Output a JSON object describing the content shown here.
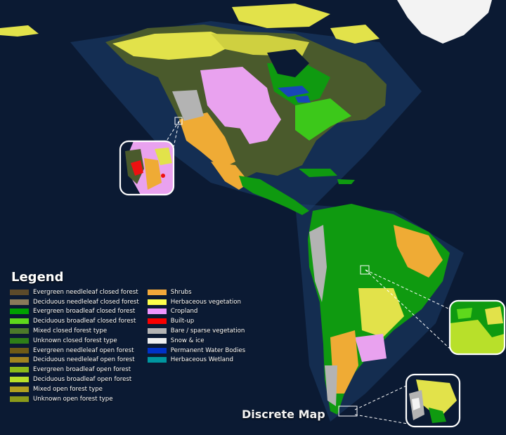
{
  "legend": {
    "title": "Legend",
    "left_items": [
      {
        "label": "Evergreen needleleaf closed forest",
        "color": "#5c4a2a"
      },
      {
        "label": "Deciduous needleleaf closed forest",
        "color": "#8a7a5a"
      },
      {
        "label": "Evergreen broadleaf closed forest",
        "color": "#00a000"
      },
      {
        "label": "Deciduous broadleaf closed forest",
        "color": "#5ed81c"
      },
      {
        "label": "Mixed closed forest type",
        "color": "#4c7a2a"
      },
      {
        "label": "Unknown closed forest type",
        "color": "#2f7f18"
      },
      {
        "label": "Evergreen needleleaf open forest",
        "color": "#6e5a16"
      },
      {
        "label": "Deciduous needleleaf open forest",
        "color": "#a08420"
      },
      {
        "label": "Evergreen broadleaf open forest",
        "color": "#8cba1a"
      },
      {
        "label": "Deciduous broadleaf open forest",
        "color": "#b8e02a"
      },
      {
        "label": "Mixed open forest type",
        "color": "#b0a020"
      },
      {
        "label": "Unknown open forest type",
        "color": "#8a9a1a"
      }
    ],
    "right_items": [
      {
        "label": "Shrubs",
        "color": "#f2a83a"
      },
      {
        "label": "Herbaceous vegetation",
        "color": "#ffff4c"
      },
      {
        "label": "Cropland",
        "color": "#f096ff"
      },
      {
        "label": "Built-up",
        "color": "#fa0000"
      },
      {
        "label": "Bare / sparse vegetation",
        "color": "#b4b4b4"
      },
      {
        "label": "Snow & ice",
        "color": "#f0f0f0"
      },
      {
        "label": "Permanent Water Bodies",
        "color": "#0032c8"
      },
      {
        "label": "Herbaceous Wetland",
        "color": "#0096a0"
      }
    ]
  },
  "caption": "Discrete Map",
  "colors": {
    "ocean": "#0b1a33",
    "shelf": "#1d3f6e",
    "forest": "#0f9a10",
    "conifer": "#4a5a2c",
    "herb": "#e2e24a",
    "crop": "#e9a2ef",
    "shrub": "#efab35",
    "bare": "#b3b3b3",
    "snow": "#f3f3f3",
    "water": "#1846b8",
    "builtup": "#ee1111"
  },
  "insets": [
    {
      "name": "california-inset",
      "icon": "magnifier-inset"
    },
    {
      "name": "amazon-inset",
      "icon": "magnifier-inset"
    },
    {
      "name": "patagonia-inset",
      "icon": "magnifier-inset"
    }
  ]
}
